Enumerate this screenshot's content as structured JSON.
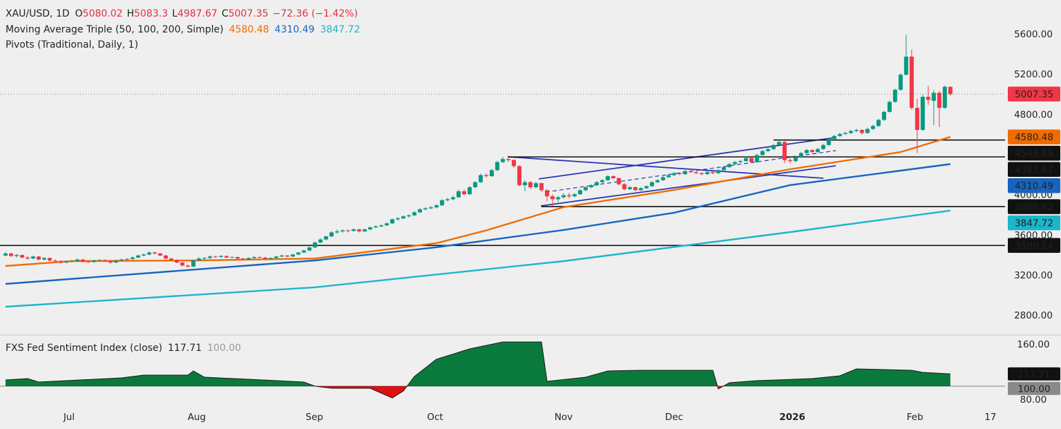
{
  "chart_data": {
    "type": "candlestick",
    "header": {
      "symbol": "XAU/USD, 1D",
      "labels": [
        "O",
        "H",
        "L",
        "C"
      ],
      "change": "−72.36 (−1.42%)"
    },
    "colors": {
      "up": "#089981",
      "down": "#f23645"
    },
    "grid": false,
    "last_price_line": true,
    "xlim": [
      -1,
      180.9
    ],
    "xticks": [
      {
        "value": 11.5,
        "label": "Jul"
      },
      {
        "value": 34.6,
        "label": "Aug"
      },
      {
        "value": 55.9,
        "label": "Sep"
      },
      {
        "value": 77.75,
        "label": "Oct"
      },
      {
        "value": 101,
        "label": "Nov"
      },
      {
        "value": 121,
        "label": "Dec"
      },
      {
        "value": 142.4,
        "label": "2026"
      },
      {
        "value": 164.6,
        "label": "Feb"
      },
      {
        "value": 178.25,
        "label": "17"
      }
    ],
    "ylim": [
      2608,
      5944
    ],
    "yticks": [
      {
        "value": 2800,
        "label": "2800.00"
      },
      {
        "value": 3200,
        "label": "3200.00"
      },
      {
        "value": 3600,
        "label": "3600.00"
      },
      {
        "value": 4000,
        "label": "4000.00"
      },
      {
        "value": 4800,
        "label": "4800.00"
      },
      {
        "value": 5200,
        "label": "5200.00"
      },
      {
        "value": 5600,
        "label": "5600.00"
      }
    ],
    "candles": [
      [
        3400,
        3435,
        3390,
        3420
      ],
      [
        3420,
        3428,
        3385,
        3395
      ],
      [
        3395,
        3415,
        3380,
        3405
      ],
      [
        3405,
        3410,
        3370,
        3380
      ],
      [
        3380,
        3392,
        3358,
        3370
      ],
      [
        3370,
        3400,
        3362,
        3390
      ],
      [
        3390,
        3395,
        3350,
        3360
      ],
      [
        3360,
        3385,
        3352,
        3375
      ],
      [
        3375,
        3380,
        3340,
        3350
      ],
      [
        3350,
        3362,
        3335,
        3345
      ],
      [
        3345,
        3352,
        3318,
        3330
      ],
      [
        3330,
        3350,
        3322,
        3340
      ],
      [
        3340,
        3356,
        3332,
        3345
      ],
      [
        3345,
        3372,
        3338,
        3360
      ],
      [
        3360,
        3366,
        3330,
        3340
      ],
      [
        3340,
        3348,
        3325,
        3335
      ],
      [
        3335,
        3360,
        3328,
        3350
      ],
      [
        3350,
        3365,
        3342,
        3355
      ],
      [
        3355,
        3362,
        3336,
        3345
      ],
      [
        3345,
        3350,
        3318,
        3330
      ],
      [
        3330,
        3360,
        3325,
        3350
      ],
      [
        3350,
        3370,
        3344,
        3360
      ],
      [
        3360,
        3374,
        3352,
        3365
      ],
      [
        3365,
        3390,
        3358,
        3380
      ],
      [
        3380,
        3410,
        3372,
        3400
      ],
      [
        3400,
        3420,
        3392,
        3410
      ],
      [
        3410,
        3440,
        3402,
        3430
      ],
      [
        3430,
        3438,
        3412,
        3420
      ],
      [
        3420,
        3426,
        3392,
        3400
      ],
      [
        3400,
        3408,
        3362,
        3370
      ],
      [
        3370,
        3378,
        3346,
        3355
      ],
      [
        3355,
        3362,
        3322,
        3330
      ],
      [
        3330,
        3338,
        3292,
        3300
      ],
      [
        3300,
        3312,
        3280,
        3290
      ],
      [
        3290,
        3360,
        3285,
        3350
      ],
      [
        3350,
        3382,
        3345,
        3370
      ],
      [
        3370,
        3385,
        3360,
        3375
      ],
      [
        3375,
        3400,
        3368,
        3390
      ],
      [
        3390,
        3398,
        3376,
        3385
      ],
      [
        3385,
        3404,
        3378,
        3395
      ],
      [
        3395,
        3400,
        3372,
        3380
      ],
      [
        3380,
        3392,
        3374,
        3385
      ],
      [
        3385,
        3390,
        3362,
        3370
      ],
      [
        3370,
        3376,
        3352,
        3360
      ],
      [
        3360,
        3382,
        3354,
        3375
      ],
      [
        3375,
        3392,
        3368,
        3385
      ],
      [
        3385,
        3390,
        3372,
        3380
      ],
      [
        3380,
        3386,
        3358,
        3365
      ],
      [
        3365,
        3382,
        3360,
        3375
      ],
      [
        3375,
        3396,
        3370,
        3390
      ],
      [
        3390,
        3408,
        3384,
        3400
      ],
      [
        3400,
        3405,
        3382,
        3390
      ],
      [
        3390,
        3416,
        3386,
        3410
      ],
      [
        3410,
        3436,
        3404,
        3430
      ],
      [
        3430,
        3458,
        3424,
        3450
      ],
      [
        3450,
        3488,
        3444,
        3480
      ],
      [
        3480,
        3540,
        3475,
        3530
      ],
      [
        3530,
        3570,
        3522,
        3560
      ],
      [
        3560,
        3598,
        3552,
        3590
      ],
      [
        3590,
        3640,
        3584,
        3630
      ],
      [
        3630,
        3658,
        3618,
        3640
      ],
      [
        3640,
        3662,
        3628,
        3650
      ],
      [
        3650,
        3660,
        3630,
        3645
      ],
      [
        3645,
        3672,
        3638,
        3660
      ],
      [
        3660,
        3668,
        3628,
        3640
      ],
      [
        3640,
        3668,
        3634,
        3660
      ],
      [
        3660,
        3690,
        3652,
        3680
      ],
      [
        3680,
        3700,
        3672,
        3690
      ],
      [
        3690,
        3710,
        3680,
        3700
      ],
      [
        3700,
        3730,
        3692,
        3720
      ],
      [
        3720,
        3770,
        3712,
        3760
      ],
      [
        3760,
        3785,
        3748,
        3770
      ],
      [
        3770,
        3800,
        3762,
        3790
      ],
      [
        3790,
        3810,
        3778,
        3800
      ],
      [
        3800,
        3842,
        3792,
        3830
      ],
      [
        3830,
        3872,
        3822,
        3860
      ],
      [
        3860,
        3882,
        3850,
        3870
      ],
      [
        3870,
        3892,
        3860,
        3880
      ],
      [
        3880,
        3912,
        3870,
        3900
      ],
      [
        3900,
        3962,
        3892,
        3950
      ],
      [
        3950,
        3975,
        3940,
        3960
      ],
      [
        3960,
        3995,
        3950,
        3980
      ],
      [
        3980,
        4055,
        3972,
        4040
      ],
      [
        4040,
        4058,
        3998,
        4010
      ],
      [
        4010,
        4092,
        4002,
        4080
      ],
      [
        4080,
        4142,
        4070,
        4130
      ],
      [
        4130,
        4215,
        4122,
        4200
      ],
      [
        4200,
        4218,
        4176,
        4190
      ],
      [
        4190,
        4262,
        4182,
        4250
      ],
      [
        4250,
        4345,
        4240,
        4330
      ],
      [
        4330,
        4381,
        4318,
        4360
      ],
      [
        4360,
        4375,
        4330,
        4350
      ],
      [
        4350,
        4358,
        4270,
        4290
      ],
      [
        4290,
        4300,
        4090,
        4100
      ],
      [
        4100,
        4150,
        4040,
        4130
      ],
      [
        4130,
        4142,
        4060,
        4080
      ],
      [
        4080,
        4135,
        4068,
        4120
      ],
      [
        4120,
        4126,
        4030,
        4050
      ],
      [
        4050,
        4060,
        3940,
        3990
      ],
      [
        3990,
        4010,
        3890,
        3960
      ],
      [
        3960,
        3995,
        3930,
        3980
      ],
      [
        3980,
        4020,
        3965,
        4000
      ],
      [
        4000,
        4025,
        3970,
        3990
      ],
      [
        3990,
        4022,
        3978,
        4010
      ],
      [
        4010,
        4062,
        4002,
        4050
      ],
      [
        4050,
        4092,
        4040,
        4080
      ],
      [
        4080,
        4112,
        4068,
        4100
      ],
      [
        4100,
        4142,
        4090,
        4130
      ],
      [
        4130,
        4162,
        4118,
        4150
      ],
      [
        4150,
        4200,
        4140,
        4190
      ],
      [
        4190,
        4198,
        4160,
        4170
      ],
      [
        4170,
        4178,
        4098,
        4110
      ],
      [
        4110,
        4120,
        4048,
        4060
      ],
      [
        4060,
        4092,
        4050,
        4080
      ],
      [
        4080,
        4088,
        4040,
        4050
      ],
      [
        4050,
        4082,
        4042,
        4070
      ],
      [
        4070,
        4100,
        4062,
        4090
      ],
      [
        4090,
        4140,
        4082,
        4130
      ],
      [
        4130,
        4162,
        4120,
        4150
      ],
      [
        4150,
        4192,
        4142,
        4180
      ],
      [
        4180,
        4212,
        4170,
        4200
      ],
      [
        4200,
        4232,
        4190,
        4220
      ],
      [
        4220,
        4228,
        4198,
        4210
      ],
      [
        4210,
        4252,
        4202,
        4240
      ],
      [
        4240,
        4248,
        4220,
        4230
      ],
      [
        4230,
        4238,
        4210,
        4220
      ],
      [
        4220,
        4230,
        4198,
        4210
      ],
      [
        4210,
        4242,
        4202,
        4230
      ],
      [
        4230,
        4236,
        4210,
        4220
      ],
      [
        4220,
        4262,
        4212,
        4250
      ],
      [
        4250,
        4292,
        4242,
        4280
      ],
      [
        4280,
        4322,
        4272,
        4310
      ],
      [
        4310,
        4342,
        4300,
        4330
      ],
      [
        4330,
        4352,
        4320,
        4340
      ],
      [
        4340,
        4382,
        4332,
        4370
      ],
      [
        4370,
        4378,
        4320,
        4330
      ],
      [
        4330,
        4412,
        4322,
        4400
      ],
      [
        4400,
        4452,
        4392,
        4440
      ],
      [
        4440,
        4472,
        4430,
        4460
      ],
      [
        4460,
        4512,
        4450,
        4500
      ],
      [
        4500,
        4549,
        4490,
        4530
      ],
      [
        4530,
        4540,
        4320,
        4350
      ],
      [
        4350,
        4372,
        4318,
        4340
      ],
      [
        4340,
        4392,
        4330,
        4380
      ],
      [
        4380,
        4432,
        4370,
        4420
      ],
      [
        4420,
        4462,
        4410,
        4450
      ],
      [
        4450,
        4458,
        4420,
        4430
      ],
      [
        4430,
        4472,
        4422,
        4460
      ],
      [
        4460,
        4512,
        4450,
        4500
      ],
      [
        4500,
        4572,
        4492,
        4560
      ],
      [
        4560,
        4602,
        4550,
        4590
      ],
      [
        4590,
        4622,
        4580,
        4610
      ],
      [
        4610,
        4634,
        4600,
        4620
      ],
      [
        4620,
        4652,
        4610,
        4640
      ],
      [
        4640,
        4662,
        4628,
        4650
      ],
      [
        4650,
        4658,
        4605,
        4620
      ],
      [
        4620,
        4672,
        4612,
        4660
      ],
      [
        4660,
        4702,
        4650,
        4690
      ],
      [
        4690,
        4762,
        4680,
        4750
      ],
      [
        4750,
        4842,
        4740,
        4830
      ],
      [
        4830,
        4945,
        4820,
        4930
      ],
      [
        4930,
        5062,
        4920,
        5050
      ],
      [
        5050,
        5215,
        5040,
        5200
      ],
      [
        5200,
        5598,
        5190,
        5380
      ],
      [
        5380,
        5450,
        4850,
        4870
      ],
      [
        4870,
        4960,
        4420,
        4650
      ],
      [
        4650,
        5000,
        4640,
        4980
      ],
      [
        4980,
        5090,
        4900,
        4950
      ],
      [
        4940,
        5050,
        4700,
        5020
      ],
      [
        5020,
        5040,
        4680,
        4870
      ],
      [
        4870,
        5090,
        4860,
        5080
      ],
      [
        5080.02,
        5083.3,
        4987.67,
        5007.35
      ]
    ],
    "moving_averages": {
      "title": "Moving Average Triple (50, 100, 200, Simple)",
      "series": [
        {
          "color": "#ef6c00",
          "x": [
            0,
            12,
            35,
            56,
            78,
            87,
            101,
            121,
            142,
            162,
            171
          ],
          "values": [
            3296,
            3344,
            3351,
            3370,
            3523,
            3650,
            3881,
            4053,
            4259,
            4430,
            4580.48
          ]
        },
        {
          "color": "#1565c0",
          "x": [
            0,
            56,
            78,
            101,
            121,
            142,
            162,
            171
          ],
          "values": [
            3117,
            3351,
            3482,
            3654,
            3826,
            4101,
            4245,
            4310.49
          ]
        },
        {
          "color": "#1cb5c9",
          "x": [
            0,
            56,
            101,
            142,
            171
          ],
          "values": [
            2890,
            3083,
            3344,
            3633,
            3847.72
          ]
        }
      ]
    },
    "pivots": {
      "title": "Pivots (Traditional, Daily, 1)",
      "color": "#111111",
      "levels": [
        {
          "value": 4549.89,
          "start": 139
        },
        {
          "value": 4381.67,
          "start": 91
        },
        {
          "value": 3886.62,
          "start": 97
        },
        {
          "value": 3500.14,
          "start": -1
        }
      ]
    },
    "indicator": {
      "type": "area",
      "title": "FXS Fed Sentiment Index (close)",
      "baseline": {
        "value": 100,
        "label": "100.00"
      },
      "up_color": "#0a7a3c",
      "down_color": "#e01010",
      "ylim": [
        69,
        174
      ],
      "yticks": [
        {
          "value": 160,
          "label": "160.00"
        },
        {
          "value": 80,
          "label": "80.00"
        }
      ],
      "x": [
        0,
        4,
        6,
        11,
        21,
        25,
        33,
        34,
        36,
        44,
        54,
        56,
        59,
        66,
        70,
        72,
        74,
        78,
        84,
        90,
        97,
        98,
        105,
        109,
        115,
        128,
        129,
        131,
        136,
        146,
        151,
        154,
        164,
        166,
        171
      ],
      "values": [
        109,
        111,
        106,
        108,
        112,
        116,
        116,
        122,
        113,
        110,
        106,
        100,
        97,
        97,
        83,
        93,
        114,
        139,
        154,
        164,
        164,
        107,
        113,
        122,
        123,
        123,
        96,
        105,
        108,
        111,
        115,
        125,
        123,
        120,
        117.71
      ]
    }
  }
}
